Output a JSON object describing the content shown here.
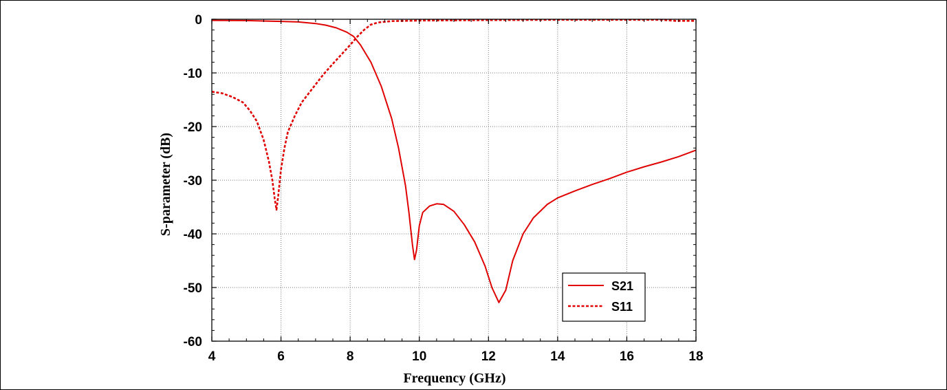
{
  "chart_data": {
    "type": "line",
    "title": "",
    "xlabel": "Frequency (GHz)",
    "ylabel": "S-parameter (dB)",
    "xlim": [
      4,
      18
    ],
    "ylim": [
      -60,
      0
    ],
    "xticks": [
      4,
      6,
      8,
      10,
      12,
      14,
      16,
      18
    ],
    "yticks": [
      0,
      -10,
      -20,
      -30,
      -40,
      -50,
      -60
    ],
    "grid": true,
    "legend_position": "bottom-right",
    "series": [
      {
        "name": "S21",
        "color": "#e00000",
        "style": "solid",
        "points": [
          [
            4.0,
            -0.2
          ],
          [
            5.0,
            -0.25
          ],
          [
            6.0,
            -0.4
          ],
          [
            6.5,
            -0.5
          ],
          [
            7.0,
            -0.8
          ],
          [
            7.3,
            -1.1
          ],
          [
            7.6,
            -1.6
          ],
          [
            7.9,
            -2.4
          ],
          [
            8.1,
            -3.2
          ],
          [
            8.3,
            -4.8
          ],
          [
            8.6,
            -8.0
          ],
          [
            8.9,
            -12.5
          ],
          [
            9.2,
            -18.5
          ],
          [
            9.4,
            -24.0
          ],
          [
            9.6,
            -31.0
          ],
          [
            9.7,
            -36.0
          ],
          [
            9.8,
            -42.0
          ],
          [
            9.86,
            -44.8
          ],
          [
            9.92,
            -43.0
          ],
          [
            10.0,
            -38.5
          ],
          [
            10.1,
            -36.0
          ],
          [
            10.3,
            -34.8
          ],
          [
            10.5,
            -34.4
          ],
          [
            10.7,
            -34.5
          ],
          [
            11.0,
            -35.8
          ],
          [
            11.3,
            -38.3
          ],
          [
            11.6,
            -41.5
          ],
          [
            11.9,
            -46.0
          ],
          [
            12.1,
            -50.0
          ],
          [
            12.3,
            -52.8
          ],
          [
            12.5,
            -50.5
          ],
          [
            12.7,
            -45.0
          ],
          [
            13.0,
            -40.0
          ],
          [
            13.3,
            -37.0
          ],
          [
            13.7,
            -34.5
          ],
          [
            14.0,
            -33.3
          ],
          [
            14.5,
            -32.0
          ],
          [
            15.0,
            -30.8
          ],
          [
            15.5,
            -29.7
          ],
          [
            16.0,
            -28.5
          ],
          [
            16.5,
            -27.5
          ],
          [
            17.0,
            -26.6
          ],
          [
            17.5,
            -25.6
          ],
          [
            18.0,
            -24.4
          ]
        ]
      },
      {
        "name": "S11",
        "color": "#e00000",
        "style": "dashed",
        "points": [
          [
            4.0,
            -13.5
          ],
          [
            4.3,
            -13.8
          ],
          [
            4.6,
            -14.5
          ],
          [
            4.9,
            -15.5
          ],
          [
            5.1,
            -17.0
          ],
          [
            5.3,
            -19.0
          ],
          [
            5.5,
            -22.5
          ],
          [
            5.65,
            -26.5
          ],
          [
            5.75,
            -30.0
          ],
          [
            5.82,
            -33.5
          ],
          [
            5.87,
            -35.5
          ],
          [
            5.92,
            -33.0
          ],
          [
            6.0,
            -28.0
          ],
          [
            6.1,
            -24.0
          ],
          [
            6.2,
            -21.0
          ],
          [
            6.4,
            -18.0
          ],
          [
            6.6,
            -15.5
          ],
          [
            6.9,
            -13.0
          ],
          [
            7.2,
            -10.5
          ],
          [
            7.5,
            -8.3
          ],
          [
            7.8,
            -6.2
          ],
          [
            8.0,
            -4.8
          ],
          [
            8.2,
            -3.3
          ],
          [
            8.4,
            -2.0
          ],
          [
            8.6,
            -1.0
          ],
          [
            8.8,
            -0.6
          ],
          [
            9.2,
            -0.35
          ],
          [
            10.0,
            -0.25
          ],
          [
            12.0,
            -0.15
          ],
          [
            14.0,
            -0.1
          ],
          [
            16.0,
            -0.1
          ],
          [
            17.0,
            -0.1
          ],
          [
            17.4,
            -0.3
          ],
          [
            18.0,
            -0.3
          ]
        ]
      }
    ]
  }
}
